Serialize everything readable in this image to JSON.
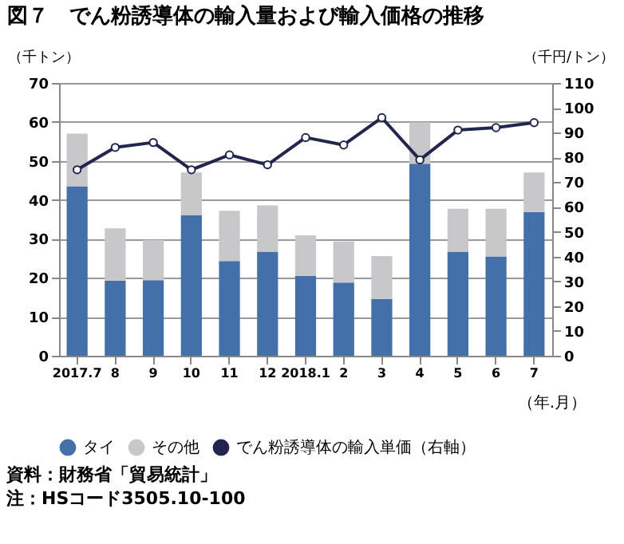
{
  "chart_data": {
    "type": "bar",
    "title": "図７　でん粉誘導体の輸入量および輸入価格の推移",
    "categories": [
      "2017.7",
      "8",
      "9",
      "10",
      "11",
      "12",
      "2018.1",
      "2",
      "3",
      "4",
      "5",
      "6",
      "7"
    ],
    "xlabel": "（年.月）",
    "ylabel": "（千トン）",
    "y2label": "（千円/トン）",
    "stacked": true,
    "series": [
      {
        "name": "タイ",
        "type": "bar",
        "color": "#4470aa",
        "values": [
          43.5,
          19.3,
          19.4,
          36.0,
          24.3,
          26.7,
          20.5,
          18.8,
          14.6,
          49.3,
          26.7,
          25.5,
          36.9
        ]
      },
      {
        "name": "その他",
        "type": "bar",
        "color": "#c8c8ca",
        "values": [
          13.5,
          13.4,
          10.3,
          11.0,
          12.9,
          11.9,
          10.4,
          10.5,
          11.0,
          10.6,
          11.0,
          12.2,
          10.1
        ]
      },
      {
        "name": "でん粉誘導体の輸入単価（右軸）",
        "type": "line",
        "axis": "y2",
        "color": "#22264e",
        "values": [
          75,
          84,
          86,
          75,
          81,
          77,
          88,
          85,
          96,
          79,
          91,
          92,
          94
        ]
      }
    ],
    "ylim": [
      0,
      70
    ],
    "yticks": [
      0,
      10,
      20,
      30,
      40,
      50,
      60,
      70
    ],
    "y2lim": [
      0,
      110
    ],
    "y2ticks": [
      0,
      10,
      20,
      30,
      40,
      50,
      60,
      70,
      80,
      90,
      100,
      110
    ],
    "grid": "y",
    "legend": "bottom",
    "marker": "circle",
    "line_style": "solid",
    "annotations": [
      "資料：財務省「貿易統計」",
      "注：HSコード3505.10-100"
    ]
  }
}
